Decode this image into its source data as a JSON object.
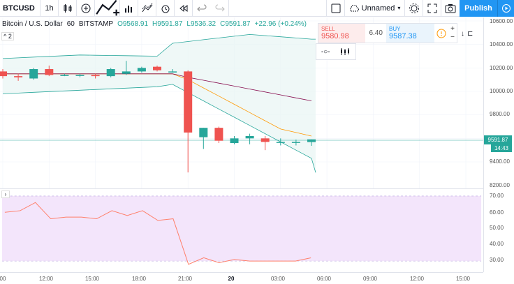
{
  "toolbar": {
    "symbol": "BTCUSD",
    "interval": "1h",
    "layout_name": "Unnamed",
    "publish_label": "Publish"
  },
  "legend": {
    "title": "Bitcoin / U.S. Dollar",
    "interval": "60",
    "exchange": "BITSTAMP",
    "open": "O9568.91",
    "high": "H9591.87",
    "low": "L9536.32",
    "close": "C9591.87",
    "change": "+22.96 (+0.24%)",
    "collapse_label": "2"
  },
  "trade": {
    "sell_label": "SELL",
    "sell_price_main": "9580.",
    "sell_price_small": "98",
    "spread": "6.40",
    "buy_label": "BUY",
    "buy_price_main": "9587.",
    "buy_price_small": "38"
  },
  "price_axis": [
    "10600.00",
    "10400.00",
    "10200.00",
    "10000.00",
    "9800.00",
    "9400.00",
    "8200.00"
  ],
  "rsi_axis": [
    "70.00",
    "60.00",
    "50.00",
    "40.00",
    "30.00"
  ],
  "last_price": "9591.87",
  "countdown": "14:43",
  "time_axis": [
    "00",
    "12:00",
    "15:00",
    "18:00",
    "21:00",
    "20",
    "03:00",
    "06:00",
    "09:00",
    "12:00",
    "15:00"
  ],
  "colors": {
    "up": "#26a69a",
    "down": "#ef5350",
    "accent": "#2196f3",
    "band_fill": "#e8f5f3",
    "rsi_fill": "#f3e5fb"
  },
  "chart_data": {
    "type": "candlestick",
    "x": [
      "10:00",
      "11:00",
      "12:00",
      "13:00",
      "14:00",
      "15:00",
      "16:00",
      "17:00",
      "18:00",
      "19:00",
      "20:00",
      "21:00",
      "22:00",
      "23:00",
      "00:00",
      "01:00",
      "02:00",
      "03:00",
      "04:00",
      "05:00",
      "06:00"
    ],
    "ohlc": [
      [
        10170,
        10190,
        10110,
        10130
      ],
      [
        10130,
        10150,
        10090,
        10120
      ],
      [
        10110,
        10200,
        10100,
        10190
      ],
      [
        10190,
        10220,
        10130,
        10140
      ],
      [
        10140,
        10150,
        10130,
        10140
      ],
      [
        10140,
        10150,
        10120,
        10140
      ],
      [
        10140,
        10150,
        10110,
        10130
      ],
      [
        10130,
        10200,
        10120,
        10190
      ],
      [
        10150,
        10260,
        10140,
        10170
      ],
      [
        10170,
        10210,
        10160,
        10200
      ],
      [
        10210,
        10220,
        10170,
        10180
      ],
      [
        10170,
        10190,
        10160,
        10170
      ],
      [
        10170,
        10180,
        9310,
        9650
      ],
      [
        9610,
        9690,
        9510,
        9690
      ],
      [
        9690,
        9700,
        9560,
        9580
      ],
      [
        9560,
        9620,
        9550,
        9600
      ],
      [
        9600,
        9640,
        9550,
        9620
      ],
      [
        9600,
        9620,
        9500,
        9570
      ],
      [
        9570,
        9600,
        9540,
        9570
      ],
      [
        9570,
        9590,
        9540,
        9570
      ],
      [
        9568.91,
        9591.87,
        9536.32,
        9591.87
      ]
    ],
    "rsi": [
      60,
      61,
      66,
      56,
      57,
      57,
      56,
      61,
      58,
      61,
      55,
      56,
      28,
      32,
      29,
      31,
      30,
      30,
      30,
      30,
      32
    ]
  }
}
